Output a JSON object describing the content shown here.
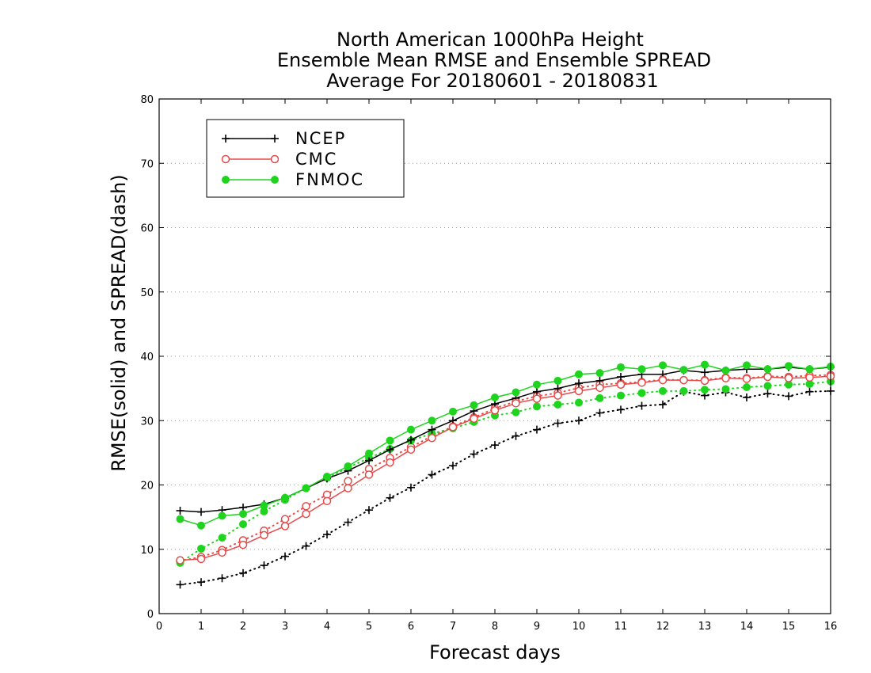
{
  "chart_data": {
    "type": "line",
    "title": [
      "North American 1000hPa Height",
      "Ensemble Mean RMSE and Ensemble SPREAD",
      "Average For 20180601 - 20180831"
    ],
    "xlabel": "Forecast days",
    "ylabel": "RMSE(solid) and SPREAD(dash)",
    "xlim": [
      0,
      16
    ],
    "ylim": [
      0,
      80
    ],
    "xticks": [
      "0",
      "1",
      "2",
      "3",
      "4",
      "5",
      "6",
      "7",
      "8",
      "9",
      "10",
      "11",
      "12",
      "13",
      "14",
      "15",
      "16"
    ],
    "yticks": [
      "0",
      "10",
      "20",
      "30",
      "40",
      "50",
      "60",
      "70",
      "80"
    ],
    "grid": "horizontal dotted",
    "legend_position": "top-left",
    "x": [
      0.5,
      1,
      1.5,
      2,
      2.5,
      3,
      3.5,
      4,
      4.5,
      5,
      5.5,
      6,
      6.5,
      7,
      7.5,
      8,
      8.5,
      9,
      9.5,
      10,
      10.5,
      11,
      11.5,
      12,
      12.5,
      13,
      13.5,
      14,
      14.5,
      15,
      15.5,
      16
    ],
    "series": [
      {
        "name": "NCEP",
        "kind": "RMSE",
        "style": "solid",
        "marker": "plus",
        "color": "#000000",
        "values": [
          16.0,
          15.8,
          16.1,
          16.5,
          17.0,
          18.0,
          19.5,
          21.0,
          22.2,
          23.8,
          25.5,
          27.0,
          28.6,
          30.0,
          31.5,
          32.6,
          33.5,
          34.5,
          35.0,
          35.8,
          36.2,
          36.8,
          37.2,
          37.2,
          37.8,
          37.5,
          37.8,
          38.0,
          38.0,
          38.3,
          38.0,
          38.3
        ]
      },
      {
        "name": "NCEP",
        "kind": "SPREAD",
        "style": "dash",
        "marker": "plus",
        "color": "#000000",
        "values": [
          4.5,
          4.9,
          5.5,
          6.3,
          7.5,
          8.9,
          10.5,
          12.3,
          14.2,
          16.1,
          18.0,
          19.6,
          21.6,
          23.0,
          24.8,
          26.2,
          27.6,
          28.6,
          29.6,
          30.0,
          31.2,
          31.7,
          32.3,
          32.5,
          34.5,
          33.9,
          34.4,
          33.6,
          34.2,
          33.8,
          34.5,
          34.6
        ]
      },
      {
        "name": "CMC",
        "kind": "RMSE",
        "style": "solid",
        "marker": "open-circle",
        "color": "#e84a4a",
        "values": [
          8.3,
          8.5,
          9.5,
          10.7,
          12.2,
          13.6,
          15.5,
          17.5,
          19.5,
          21.6,
          23.5,
          25.5,
          27.3,
          29.0,
          30.3,
          31.6,
          32.7,
          33.4,
          33.9,
          34.6,
          35.1,
          35.6,
          35.9,
          36.3,
          36.3,
          36.2,
          36.6,
          36.5,
          36.8,
          36.6,
          36.7,
          36.9
        ]
      },
      {
        "name": "CMC",
        "kind": "SPREAD",
        "style": "dash",
        "marker": "open-circle",
        "color": "#e84a4a",
        "values": [
          8.2,
          8.8,
          9.9,
          11.4,
          12.9,
          14.7,
          16.7,
          18.5,
          20.6,
          22.5,
          24.2,
          25.9,
          27.6,
          29.1,
          30.5,
          31.9,
          33.0,
          33.8,
          34.3,
          35.1,
          35.6,
          35.8,
          36.0,
          36.4,
          36.3,
          36.3,
          36.7,
          36.6,
          36.9,
          36.8,
          37.0,
          37.1
        ]
      },
      {
        "name": "FNMOC",
        "kind": "RMSE",
        "style": "solid",
        "marker": "filled-circle",
        "color": "#1ed41e",
        "values": [
          14.7,
          13.7,
          15.2,
          15.5,
          16.8,
          18.0,
          19.5,
          21.3,
          22.9,
          24.9,
          26.9,
          28.6,
          30.0,
          31.4,
          32.4,
          33.6,
          34.4,
          35.6,
          36.2,
          37.2,
          37.4,
          38.3,
          38.0,
          38.6,
          37.9,
          38.7,
          37.8,
          38.6,
          38.0,
          38.5,
          38.0,
          38.4
        ]
      },
      {
        "name": "FNMOC",
        "kind": "SPREAD",
        "style": "dash",
        "marker": "filled-circle",
        "color": "#1ed41e",
        "values": [
          7.9,
          10.1,
          11.8,
          13.9,
          15.9,
          17.7,
          19.5,
          21.1,
          22.7,
          24.2,
          25.6,
          26.9,
          28.0,
          28.8,
          29.8,
          30.8,
          31.3,
          32.2,
          32.5,
          32.8,
          33.5,
          33.9,
          34.3,
          34.6,
          34.6,
          34.8,
          34.9,
          35.2,
          35.4,
          35.6,
          35.7,
          36.1
        ]
      }
    ]
  }
}
